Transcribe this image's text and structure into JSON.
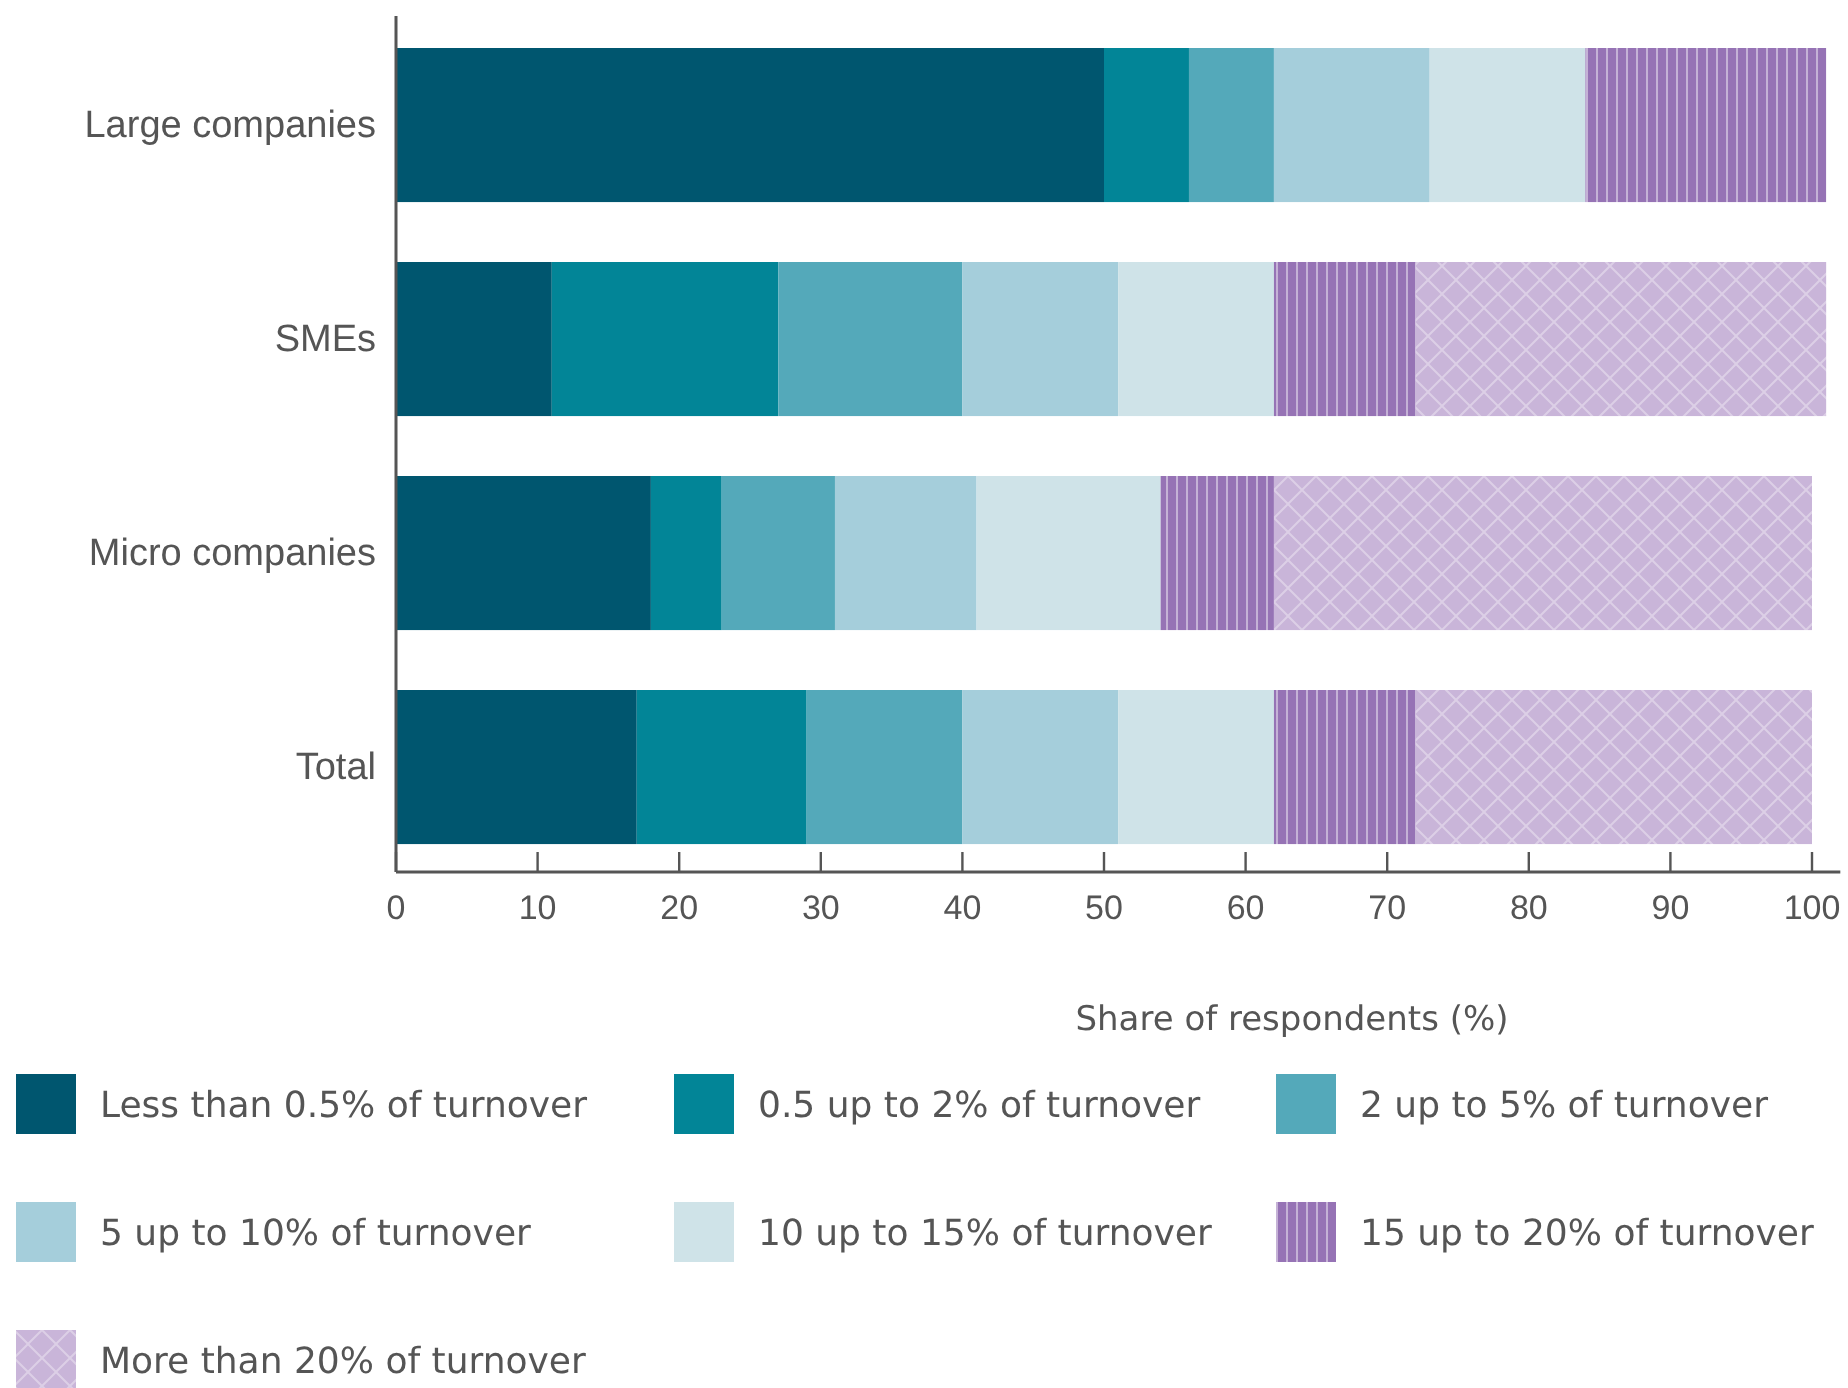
{
  "chart_data": {
    "type": "bar",
    "orientation": "horizontal",
    "stacked": true,
    "xlabel": "Share of respondents (%)",
    "categories": [
      "Large companies",
      "SMEs",
      "Micro companies",
      "Total"
    ],
    "series": [
      {
        "name": "Less than 0.5% of turnover",
        "color": "#00566f",
        "values": [
          50,
          11,
          18,
          17
        ]
      },
      {
        "name": "0.5 up to 2% of turnover",
        "color": "#028597",
        "values": [
          6,
          16,
          5,
          12
        ]
      },
      {
        "name": "2 up to 5% of turnover",
        "color": "#54a9ba",
        "values": [
          6,
          13,
          8,
          11
        ]
      },
      {
        "name": "5 up to 10% of turnover",
        "color": "#a5cedb",
        "values": [
          11,
          11,
          10,
          11
        ]
      },
      {
        "name": "10 up to 15% of turnover",
        "color": "#cfe3e8",
        "values": [
          11,
          11,
          13,
          11
        ]
      },
      {
        "name": "15 up to 20% of turnover",
        "color": "#9673b5",
        "values": [
          17,
          10,
          8,
          10
        ]
      },
      {
        "name": "More than 20% of turnover",
        "color": "#c9b5d9",
        "values": [
          0,
          29,
          38,
          28
        ]
      }
    ],
    "xlim": [
      0,
      102
    ],
    "xticks": [
      0,
      10,
      20,
      30,
      40,
      50,
      60,
      70,
      80,
      90,
      100
    ],
    "grid": false,
    "legend": "bottom"
  }
}
